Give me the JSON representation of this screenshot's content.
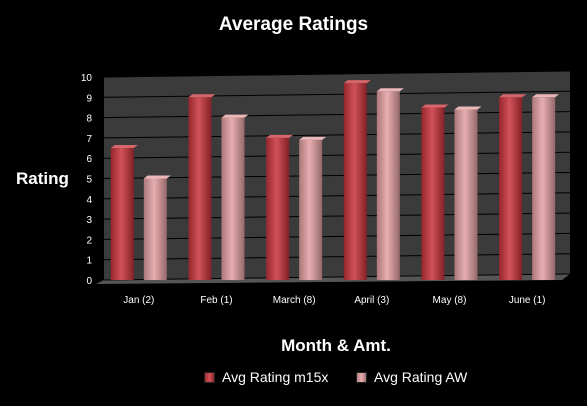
{
  "chart_data": {
    "type": "bar",
    "title": "Average Ratings",
    "xlabel": "Month & Amt.",
    "ylabel": "Rating",
    "categories": [
      "Jan (2)",
      "Feb (1)",
      "March (8)",
      "April (3)",
      "May (8)",
      "June (1)"
    ],
    "series": [
      {
        "name": "Avg Rating m15x",
        "values": [
          6.5,
          9.0,
          7.0,
          9.7,
          8.5,
          9.0
        ],
        "color": "#c8333a"
      },
      {
        "name": "Avg Rating AW",
        "values": [
          5.0,
          8.0,
          6.9,
          9.3,
          8.4,
          9.0
        ],
        "color": "#e4a0a2"
      }
    ],
    "ylim": [
      0,
      10
    ],
    "yticks": [
      0,
      1,
      2,
      3,
      4,
      5,
      6,
      7,
      8,
      9,
      10
    ],
    "grid": true,
    "legend_position": "bottom",
    "plot_background": "#3b3b3b",
    "gridline_color": "#000000"
  }
}
